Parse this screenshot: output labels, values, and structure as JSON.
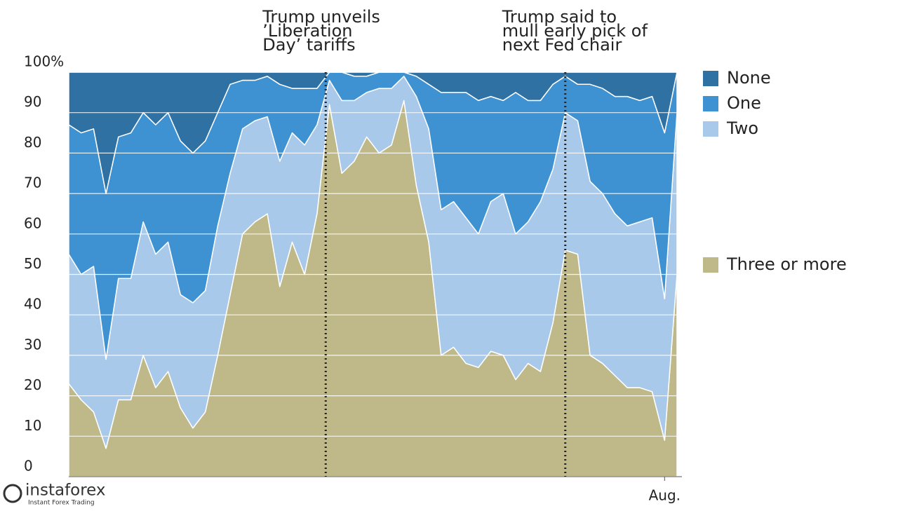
{
  "chart_data": {
    "type": "stacked_area",
    "categories": [
      null,
      null,
      null,
      null,
      null,
      null,
      null,
      null,
      null,
      null,
      null,
      null,
      null,
      null,
      null,
      null,
      null,
      null,
      null,
      null,
      null,
      null,
      null,
      null,
      null,
      null,
      null,
      null,
      null,
      null,
      null,
      null,
      null,
      null,
      null,
      null,
      null,
      null,
      null,
      null,
      null,
      null,
      null,
      null,
      null,
      null,
      null,
      null,
      "Aug.",
      null
    ],
    "series": [
      {
        "name": "Three or more",
        "color": "#bfb98a",
        "values": [
          23,
          19,
          16,
          7,
          19,
          19,
          30,
          22,
          26,
          17,
          12,
          16,
          30,
          45,
          60,
          63,
          65,
          47,
          58,
          50,
          65,
          92,
          75,
          78,
          84,
          80,
          82,
          93,
          72,
          58,
          30,
          32,
          28,
          27,
          31,
          30,
          24,
          28,
          26,
          38,
          56,
          55,
          30,
          28,
          25,
          22,
          22,
          21,
          9,
          50
        ]
      },
      {
        "name": "Two",
        "color": "#a8c9ea",
        "values": [
          32,
          31,
          36,
          22,
          30,
          30,
          33,
          33,
          32,
          28,
          31,
          30,
          32,
          30,
          26,
          25,
          24,
          31,
          27,
          32,
          22,
          6,
          18,
          15,
          11,
          16,
          14,
          6,
          22,
          28,
          36,
          36,
          36,
          33,
          37,
          40,
          36,
          35,
          42,
          38,
          34,
          33,
          43,
          42,
          40,
          40,
          41,
          43,
          35,
          40
        ]
      },
      {
        "name": "One",
        "color": "#3f92d2",
        "values": [
          32,
          35,
          34,
          41,
          35,
          36,
          27,
          32,
          32,
          38,
          37,
          37,
          28,
          22,
          12,
          10,
          10,
          19,
          11,
          14,
          9,
          2,
          7,
          6,
          4,
          4,
          4,
          1,
          5,
          11,
          29,
          27,
          31,
          33,
          26,
          23,
          35,
          30,
          25,
          21,
          9,
          9,
          24,
          26,
          29,
          32,
          30,
          30,
          41,
          10
        ]
      },
      {
        "name": "None",
        "color": "#2f71a3",
        "values": [
          13,
          15,
          14,
          30,
          16,
          15,
          10,
          13,
          10,
          17,
          20,
          17,
          10,
          3,
          2,
          2,
          1,
          3,
          4,
          4,
          4,
          0,
          0,
          1,
          1,
          0,
          0,
          0,
          1,
          3,
          5,
          5,
          5,
          7,
          6,
          7,
          5,
          7,
          7,
          3,
          1,
          3,
          3,
          4,
          6,
          6,
          7,
          6,
          15,
          0
        ]
      }
    ],
    "ylim": [
      0,
      100
    ],
    "yticks": [
      0,
      10,
      20,
      30,
      40,
      50,
      60,
      70,
      80,
      90,
      {
        "value": 100,
        "label": "100%"
      }
    ],
    "grid": true,
    "annotations": [
      {
        "lines": [
          "Trump unveils",
          "’Liberation",
          "Day’ tariffs"
        ],
        "index": 20.7
      },
      {
        "lines": [
          "Trump said to",
          "mull early pick of",
          "next Fed chair"
        ],
        "index": 40
      }
    ],
    "watermark": "instaforex",
    "watermark_subtitle": "Instant Forex Trading"
  }
}
